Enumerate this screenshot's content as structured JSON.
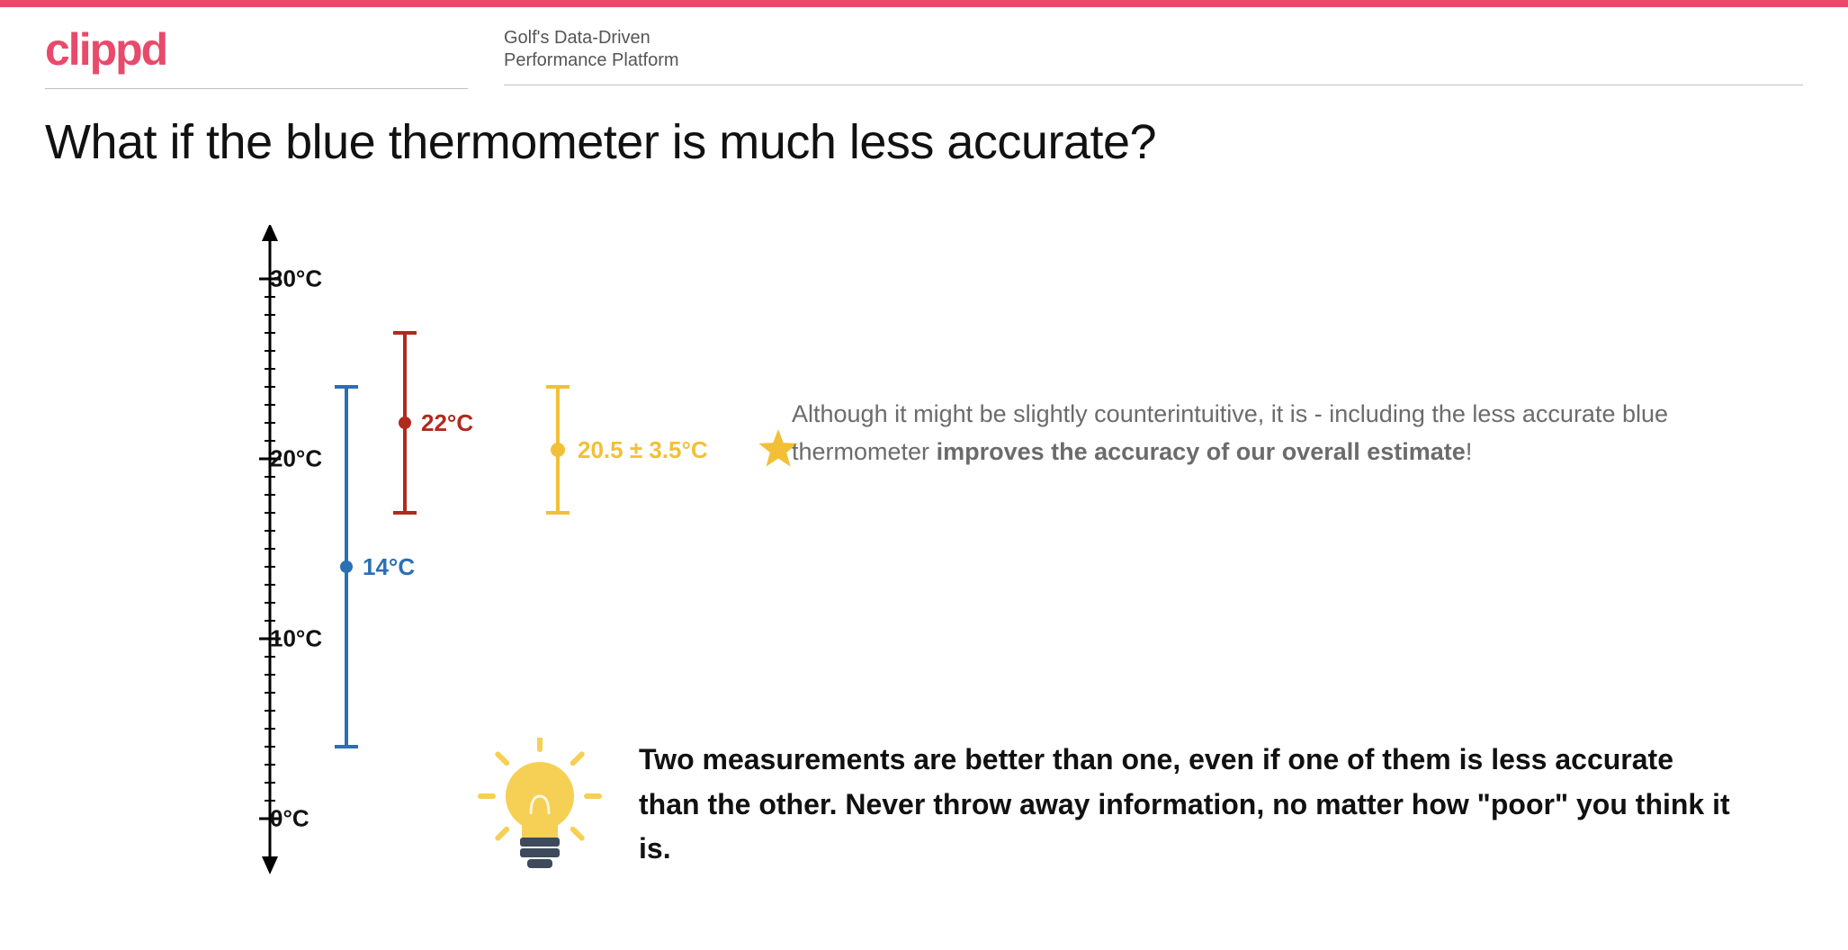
{
  "theme": {
    "accent": "#e84a6b",
    "axis_color": "#000000",
    "text_color": "#111111",
    "muted_text": "#6b6b6b",
    "rule_color": "#bfbfbf"
  },
  "header": {
    "brand": "clippd",
    "subtitle_line1": "Golf's Data-Driven",
    "subtitle_line2": "Performance Platform"
  },
  "title": "What if the blue thermometer is much less accurate?",
  "chart": {
    "type": "errorbar",
    "y_min": -2,
    "y_max": 32,
    "tick_step_minor": 1,
    "tick_step_major": 10,
    "axis_labels": [
      "0°C",
      "10°C",
      "20°C",
      "30°C"
    ],
    "axis_label_values": [
      0,
      10,
      20,
      30
    ],
    "axis_color": "#000000",
    "axis_width": 3,
    "major_tick_len": 24,
    "minor_tick_len": 12,
    "cap_width": 26,
    "series": [
      {
        "name": "blue",
        "x": 85,
        "value": 14,
        "low": 4,
        "high": 24,
        "color": "#2b6fb5",
        "label": "14°C",
        "label_dx": 18,
        "dot_r": 7
      },
      {
        "name": "red",
        "x": 150,
        "value": 22,
        "low": 17,
        "high": 27,
        "color": "#b02a1f",
        "label": "22°C",
        "label_dx": 18,
        "dot_r": 7
      },
      {
        "name": "yellow",
        "x": 320,
        "value": 20.5,
        "low": 17,
        "high": 24,
        "color": "#f2c037",
        "label": "20.5 ± 3.5°C",
        "label_dx": 22,
        "dot_r": 8
      }
    ],
    "star": {
      "color": "#f2c037",
      "size": 46
    }
  },
  "explain": {
    "pre": "Although it might be slightly counterintuitive, it is - including the less accurate blue thermometer ",
    "bold": "improves the accuracy of our overall estimate",
    "post": "!"
  },
  "takeaway": "Two measurements are better than one, even if one of them is less accurate than the other. Never throw away information, no matter how \"poor\" you think it is.",
  "bulb": {
    "glass": "#f6cf55",
    "base": "#3e4a5b",
    "ray": "#f6cf55"
  }
}
